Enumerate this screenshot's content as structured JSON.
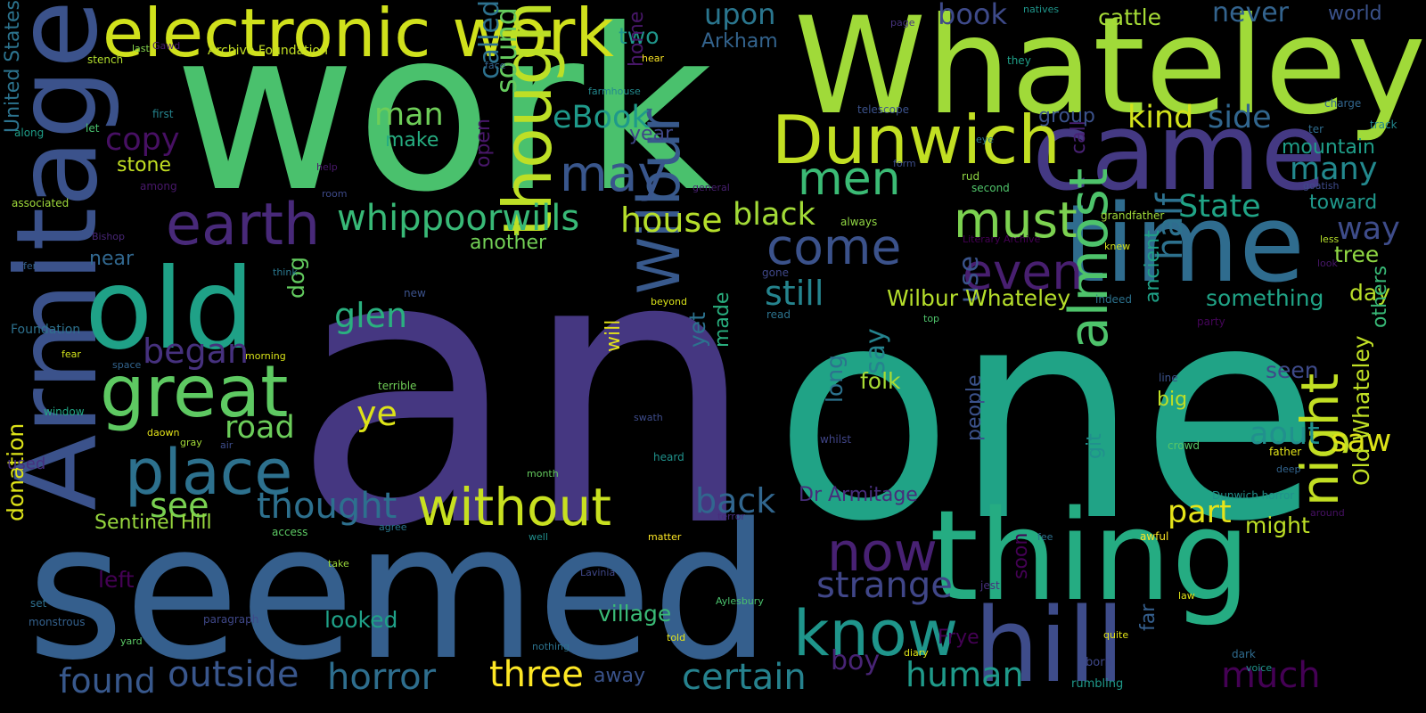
{
  "words": [
    {
      "text": "an",
      "color": "#453781"
    },
    {
      "text": "one",
      "color": "#20a386"
    },
    {
      "text": "work",
      "color": "#4ac16d"
    },
    {
      "text": "seemed",
      "color": "#355f8d"
    },
    {
      "text": "Whateley",
      "color": "#a0da39"
    },
    {
      "text": "came",
      "color": "#443983"
    },
    {
      "text": "thing",
      "color": "#25ac82"
    },
    {
      "text": "time",
      "color": "#2f6c8e"
    },
    {
      "text": "Armitage",
      "color": "#3b528b"
    },
    {
      "text": "old",
      "color": "#1fa187"
    },
    {
      "text": "hill",
      "color": "#3e4c8a"
    },
    {
      "text": "electronic work",
      "color": "#d0e11c"
    },
    {
      "text": "Dunwich",
      "color": "#c2df23"
    },
    {
      "text": "great",
      "color": "#5ec962"
    },
    {
      "text": "place",
      "color": "#2d718e"
    },
    {
      "text": "earth",
      "color": "#482979"
    },
    {
      "text": "though",
      "color": "#bddf26"
    },
    {
      "text": "know",
      "color": "#1f958b"
    },
    {
      "text": "almost",
      "color": "#4ec36b"
    },
    {
      "text": "Wilbur",
      "color": "#38598c"
    },
    {
      "text": "without",
      "color": "#c8e020"
    },
    {
      "text": "night",
      "color": "#c2df23"
    },
    {
      "text": "must",
      "color": "#7cd250"
    },
    {
      "text": "even",
      "color": "#481f70"
    },
    {
      "text": "come",
      "color": "#3b528b"
    },
    {
      "text": "now",
      "color": "#482173"
    },
    {
      "text": "may",
      "color": "#39568c"
    },
    {
      "text": "men",
      "color": "#3bbb75"
    },
    {
      "text": "whippoorwills",
      "color": "#38b977"
    },
    {
      "text": "strange",
      "color": "#404688"
    },
    {
      "text": "certain",
      "color": "#26828e"
    },
    {
      "text": "horror",
      "color": "#2e6e8e"
    },
    {
      "text": "outside",
      "color": "#39568c"
    },
    {
      "text": "three",
      "color": "#fde725"
    },
    {
      "text": "found",
      "color": "#38588c"
    },
    {
      "text": "human",
      "color": "#1f9a8a"
    },
    {
      "text": "thought",
      "color": "#2d708e"
    },
    {
      "text": "back",
      "color": "#31668e"
    },
    {
      "text": "road",
      "color": "#6ccd5a"
    },
    {
      "text": "began",
      "color": "#46317e"
    },
    {
      "text": "glen",
      "color": "#2ab07f"
    },
    {
      "text": "see",
      "color": "#7ad151"
    },
    {
      "text": "ye",
      "color": "#dde318"
    },
    {
      "text": "still",
      "color": "#25848e"
    },
    {
      "text": "house",
      "color": "#b5de2b"
    },
    {
      "text": "black",
      "color": "#a2da37"
    },
    {
      "text": "sound",
      "color": "#65cb5e"
    },
    {
      "text": "eBook",
      "color": "#1f998a"
    },
    {
      "text": "man",
      "color": "#6ece58"
    },
    {
      "text": "copy",
      "color": "#471063"
    },
    {
      "text": "upon",
      "color": "#2a768e"
    },
    {
      "text": "book",
      "color": "#3e4a89"
    },
    {
      "text": "two",
      "color": "#1f968b"
    },
    {
      "text": "Arkham",
      "color": "#33638d"
    },
    {
      "text": "cattle",
      "color": "#a5db36"
    },
    {
      "text": "never",
      "color": "#33638d"
    },
    {
      "text": "world",
      "color": "#3b528b"
    },
    {
      "text": "kind",
      "color": "#d2e21b"
    },
    {
      "text": "side",
      "color": "#31668e"
    },
    {
      "text": "group",
      "color": "#3b528b"
    },
    {
      "text": "mountain",
      "color": "#1f9e89"
    },
    {
      "text": "many",
      "color": "#23898e"
    },
    {
      "text": "State",
      "color": "#20a486"
    },
    {
      "text": "toward",
      "color": "#1f988b"
    },
    {
      "text": "way",
      "color": "#3e4c8a"
    },
    {
      "text": "tree",
      "color": "#90d743"
    },
    {
      "text": "something",
      "color": "#20a386"
    },
    {
      "text": "day",
      "color": "#b8de29"
    },
    {
      "text": "saw",
      "color": "#dde318"
    },
    {
      "text": "aout",
      "color": "#21908d"
    },
    {
      "text": "part",
      "color": "#e5e419"
    },
    {
      "text": "might",
      "color": "#bddf26"
    },
    {
      "text": "much",
      "color": "#440154"
    },
    {
      "text": "half",
      "color": "#2d718e"
    },
    {
      "text": "seen",
      "color": "#3e4a89"
    },
    {
      "text": "Old Whateley",
      "color": "#c0df25"
    },
    {
      "text": "use",
      "color": "#3a548c"
    },
    {
      "text": "say",
      "color": "#25838e"
    },
    {
      "text": "long",
      "color": "#2c728e"
    },
    {
      "text": "folk",
      "color": "#a8db34"
    },
    {
      "text": "Wilbur Whateley",
      "color": "#b5de2b"
    },
    {
      "text": "Dr Armitage",
      "color": "#472d7b"
    },
    {
      "text": "boy",
      "color": "#482475"
    },
    {
      "text": "Frye",
      "color": "#440154"
    },
    {
      "text": "yet",
      "color": "#2c728e"
    },
    {
      "text": "made",
      "color": "#29af7f"
    },
    {
      "text": "will",
      "color": "#e5e419"
    },
    {
      "text": "dog",
      "color": "#63cb5f"
    },
    {
      "text": "village",
      "color": "#3aba76"
    },
    {
      "text": "looked",
      "color": "#1fa188"
    },
    {
      "text": "left",
      "color": "#440154"
    },
    {
      "text": "donation",
      "color": "#dde318"
    },
    {
      "text": "Sentinel Hill",
      "color": "#98d83e"
    },
    {
      "text": "another",
      "color": "#73d056"
    },
    {
      "text": "stone",
      "color": "#c2df23"
    },
    {
      "text": "make",
      "color": "#26ad81"
    },
    {
      "text": "year",
      "color": "#3f4788"
    },
    {
      "text": "near",
      "color": "#31678e"
    },
    {
      "text": "away",
      "color": "#3a538b"
    },
    {
      "text": "big",
      "color": "#bfdf25"
    },
    {
      "text": "people",
      "color": "#3b528b"
    },
    {
      "text": "United States",
      "color": "#2c738e"
    },
    {
      "text": "Foundation",
      "color": "#2d718e"
    },
    {
      "text": "Archive Foundation",
      "color": "#c2df23"
    },
    {
      "text": "associated",
      "color": "#9fda3a"
    },
    {
      "text": "used",
      "color": "#46307e"
    },
    {
      "text": "stench",
      "color": "#b2dd2d"
    },
    {
      "text": "last",
      "color": "#84d44b"
    },
    {
      "text": "Gawd",
      "color": "#481c6e"
    },
    {
      "text": "first",
      "color": "#25848e"
    },
    {
      "text": "along",
      "color": "#1f9e89"
    },
    {
      "text": "let",
      "color": "#48c16e"
    },
    {
      "text": "among",
      "color": "#48186a"
    },
    {
      "text": "Bishop",
      "color": "#482677"
    },
    {
      "text": "fer",
      "color": "#34618d"
    },
    {
      "text": "fear",
      "color": "#d0e11c"
    },
    {
      "text": "window",
      "color": "#22a785"
    },
    {
      "text": "daown",
      "color": "#e5e419"
    },
    {
      "text": "gray",
      "color": "#a2da37"
    },
    {
      "text": "air",
      "color": "#3d4d8a"
    },
    {
      "text": "set",
      "color": "#2e6f8e"
    },
    {
      "text": "monstrous",
      "color": "#34618d"
    },
    {
      "text": "paragraph",
      "color": "#3f4889"
    },
    {
      "text": "yard",
      "color": "#5ac864"
    },
    {
      "text": "take",
      "color": "#9bd93c"
    },
    {
      "text": "face",
      "color": "#33628d"
    },
    {
      "text": "home",
      "color": "#481769"
    },
    {
      "text": "called",
      "color": "#2d718e"
    },
    {
      "text": "farmhouse",
      "color": "#23898e"
    },
    {
      "text": "hear",
      "color": "#fde725"
    },
    {
      "text": "help",
      "color": "#48186a"
    },
    {
      "text": "room",
      "color": "#3e4a89"
    },
    {
      "text": "open",
      "color": "#481769"
    },
    {
      "text": "page",
      "color": "#46337f"
    },
    {
      "text": "natives",
      "color": "#1f968b"
    },
    {
      "text": "they",
      "color": "#1f9f88"
    },
    {
      "text": "telescope",
      "color": "#3b528b"
    },
    {
      "text": "call",
      "color": "#482173"
    },
    {
      "text": "form",
      "color": "#3d4e8a"
    },
    {
      "text": "general",
      "color": "#482071"
    },
    {
      "text": "rud",
      "color": "#90d743"
    },
    {
      "text": "second",
      "color": "#50c46a"
    },
    {
      "text": "eye",
      "color": "#2a778e"
    },
    {
      "text": "always",
      "color": "#90d743"
    },
    {
      "text": "gone",
      "color": "#3f4788"
    },
    {
      "text": "read",
      "color": "#2c738e"
    },
    {
      "text": "beyond",
      "color": "#dae319"
    },
    {
      "text": "morning",
      "color": "#d8e219"
    },
    {
      "text": "think",
      "color": "#2a778e"
    },
    {
      "text": "new",
      "color": "#3b528b"
    },
    {
      "text": "space",
      "color": "#32648e"
    },
    {
      "text": "terrible",
      "color": "#70cf57"
    },
    {
      "text": "swath",
      "color": "#3e4c8a"
    },
    {
      "text": "whilst",
      "color": "#404588"
    },
    {
      "text": "heard",
      "color": "#20928c"
    },
    {
      "text": "month",
      "color": "#65cb5e"
    },
    {
      "text": "access",
      "color": "#5cc863"
    },
    {
      "text": "agree",
      "color": "#2a768e"
    },
    {
      "text": "well",
      "color": "#21908d"
    },
    {
      "text": "matter",
      "color": "#fde725"
    },
    {
      "text": "terror",
      "color": "#472d7b"
    },
    {
      "text": "Lavinia",
      "color": "#3f4788"
    },
    {
      "text": "Aylesbury",
      "color": "#4ac16d"
    },
    {
      "text": "told",
      "color": "#e5e419"
    },
    {
      "text": "nothing",
      "color": "#2c728e"
    },
    {
      "text": "diary",
      "color": "#dde318"
    },
    {
      "text": "rumbling",
      "color": "#1f998a"
    },
    {
      "text": "Literary Archive",
      "color": "#440154"
    },
    {
      "text": "grandfather",
      "color": "#a0da39"
    },
    {
      "text": "knew",
      "color": "#d2e21b"
    },
    {
      "text": "indeed",
      "color": "#2c728e"
    },
    {
      "text": "ancient",
      "color": "#1fa287"
    },
    {
      "text": "party",
      "color": "#450559"
    },
    {
      "text": "top",
      "color": "#4ec36b"
    },
    {
      "text": "line",
      "color": "#3b528b"
    },
    {
      "text": "crowd",
      "color": "#56c667"
    },
    {
      "text": "father",
      "color": "#e2e418"
    },
    {
      "text": "deep",
      "color": "#32648e"
    },
    {
      "text": "git",
      "color": "#21908d"
    },
    {
      "text": "soon",
      "color": "#440154"
    },
    {
      "text": "jest",
      "color": "#46307e"
    },
    {
      "text": "fee",
      "color": "#2d708e"
    },
    {
      "text": "law",
      "color": "#dde318"
    },
    {
      "text": "far",
      "color": "#355f8d"
    },
    {
      "text": "quite",
      "color": "#e2e418"
    },
    {
      "text": "born",
      "color": "#3f4889"
    },
    {
      "text": "dark",
      "color": "#2f6b8e"
    },
    {
      "text": "voice",
      "color": "#1f968b"
    },
    {
      "text": "awful",
      "color": "#fde725"
    },
    {
      "text": "Dunwich horror",
      "color": "#21918c"
    },
    {
      "text": "around",
      "color": "#471164"
    },
    {
      "text": "others",
      "color": "#38b977"
    },
    {
      "text": "charge",
      "color": "#31668e"
    },
    {
      "text": "ter",
      "color": "#2f6c8e"
    },
    {
      "text": "track",
      "color": "#23888e"
    },
    {
      "text": "less",
      "color": "#b5de2b"
    },
    {
      "text": "look",
      "color": "#48186a"
    },
    {
      "text": "goatish",
      "color": "#3e4a89"
    },
    {
      "text": "manuscript",
      "color": "#fde725"
    }
  ]
}
